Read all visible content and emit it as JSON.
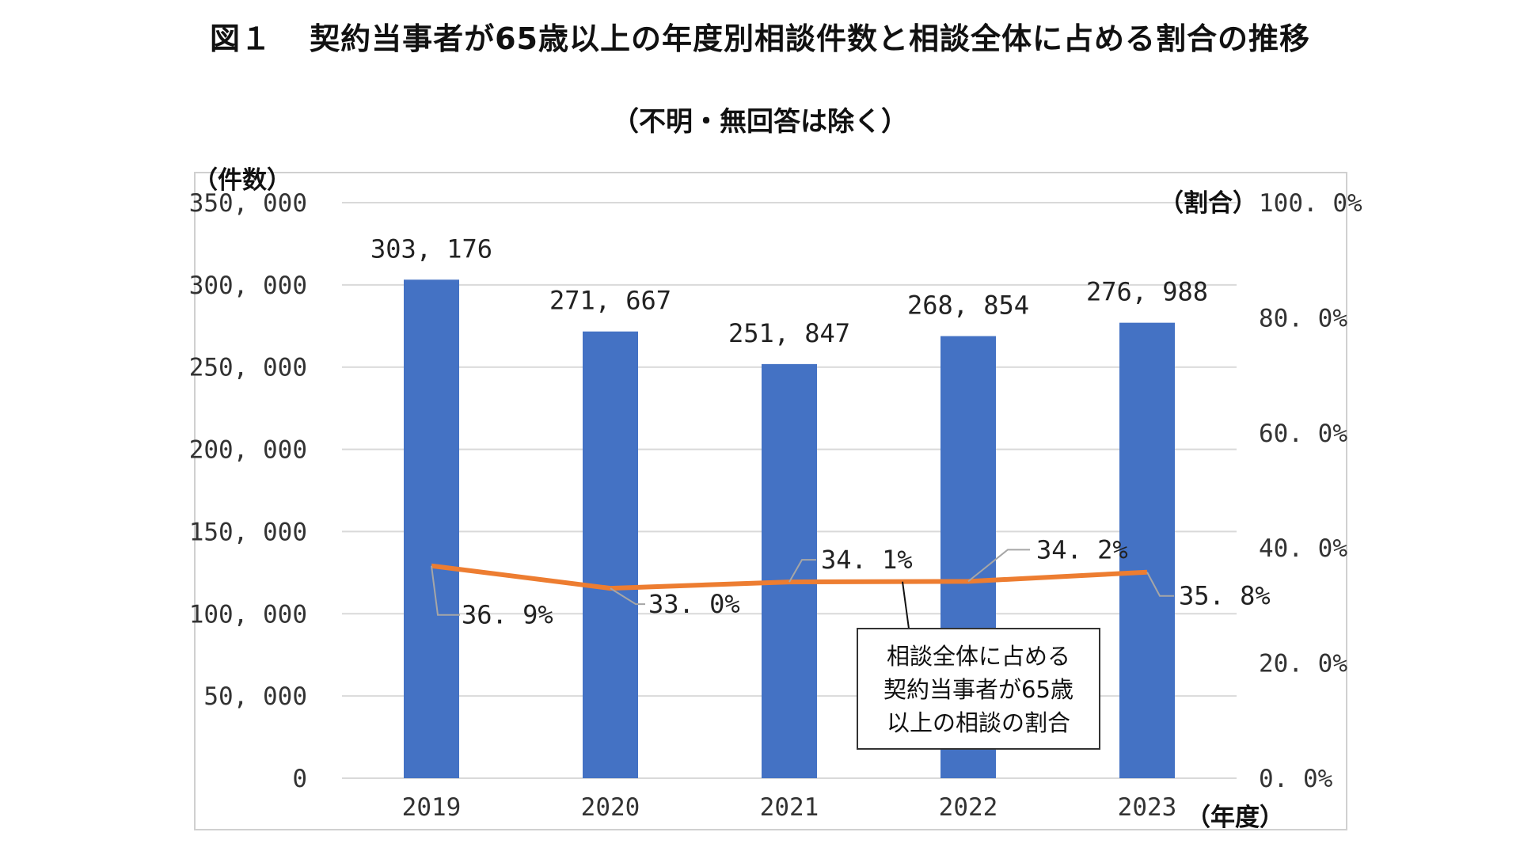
{
  "title": {
    "figure_label": "図１",
    "text": "契約当事者が65歳以上の年度別相談件数と相談全体に占める割合の推移"
  },
  "subtitle": "（不明・無回答は除く）",
  "colors": {
    "bar": "#4472C4",
    "line": "#ED7D31",
    "grid": "#D9D9D9",
    "frame": "#D0D0D0"
  },
  "chart_data": {
    "type": "bar",
    "categories": [
      "2019",
      "2020",
      "2021",
      "2022",
      "2023"
    ],
    "series": [
      {
        "name": "件数",
        "kind": "bar",
        "axis": "left",
        "values": [
          303176,
          271667,
          251847,
          268854,
          276988
        ],
        "labels": [
          "303, 176",
          "271, 667",
          "251, 847",
          "268, 854",
          "276, 988"
        ]
      },
      {
        "name": "相談全体に占める契約当事者が65歳以上の相談の割合",
        "kind": "line",
        "axis": "right",
        "values": [
          36.9,
          33.0,
          34.1,
          34.2,
          35.8
        ],
        "labels": [
          "36. 9%",
          "33. 0%",
          "34. 1%",
          "34. 2%",
          "35. 8%"
        ]
      }
    ],
    "y_left": {
      "label": "（件数）",
      "min": 0,
      "max": 350000,
      "ticks": [
        0,
        50000,
        100000,
        150000,
        200000,
        250000,
        300000,
        350000
      ],
      "tick_labels": [
        "0",
        "50, 000",
        "100, 000",
        "150, 000",
        "200, 000",
        "250, 000",
        "300, 000",
        "350, 000"
      ]
    },
    "y_right": {
      "label": "（割合）",
      "min": 0,
      "max": 100,
      "ticks": [
        0,
        20,
        40,
        60,
        80,
        100
      ],
      "tick_labels": [
        "0. 0%",
        "20. 0%",
        "40. 0%",
        "60. 0%",
        "80. 0%",
        "100. 0%"
      ]
    },
    "x_label": "（年度）",
    "callout": [
      "相談全体に占める",
      "契約当事者が65歳",
      "以上の相談の割合"
    ],
    "grid": true
  }
}
